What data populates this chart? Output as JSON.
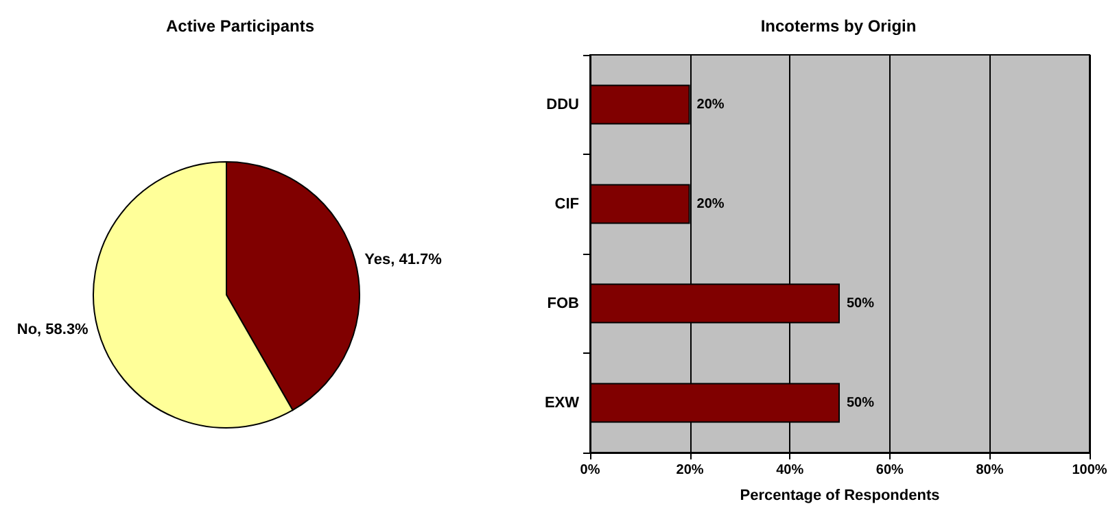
{
  "chart_data": [
    {
      "type": "pie",
      "title": "Active Participants",
      "categories": [
        "Yes",
        "No"
      ],
      "values": [
        41.7,
        58.3
      ],
      "colors": [
        "#800000",
        "#ffff99"
      ],
      "value_labels": [
        "41.7%",
        "58.3%"
      ]
    },
    {
      "type": "bar",
      "title": "Incoterms by Origin",
      "orientation": "horizontal",
      "categories": [
        "DDU",
        "CIF",
        "FOB",
        "EXW"
      ],
      "values": [
        20,
        20,
        50,
        50
      ],
      "color": "#800000",
      "value_labels": [
        "20%",
        "20%",
        "50%",
        "50%"
      ],
      "xlabel": "Percentage of Respondents",
      "xlim": [
        0,
        100
      ],
      "xticks": [
        {
          "value": 0,
          "label": "0%"
        },
        {
          "value": 20,
          "label": "20%"
        },
        {
          "value": 40,
          "label": "40%"
        },
        {
          "value": 60,
          "label": "60%"
        },
        {
          "value": 80,
          "label": "80%"
        },
        {
          "value": 100,
          "label": "100%"
        }
      ],
      "grid": "x"
    }
  ]
}
